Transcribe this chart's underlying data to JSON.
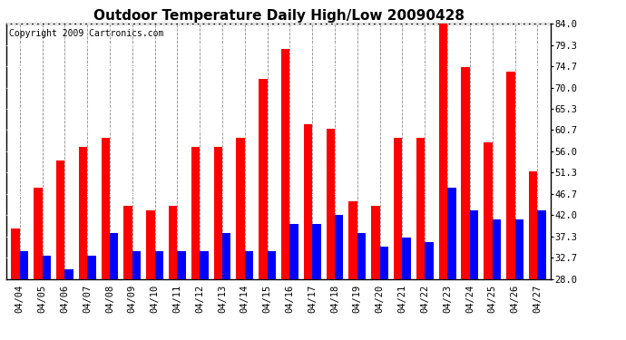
{
  "title": "Outdoor Temperature Daily High/Low 20090428",
  "copyright": "Copyright 2009 Cartronics.com",
  "dates": [
    "04/04",
    "04/05",
    "04/06",
    "04/07",
    "04/08",
    "04/09",
    "04/10",
    "04/11",
    "04/12",
    "04/13",
    "04/14",
    "04/15",
    "04/16",
    "04/17",
    "04/18",
    "04/19",
    "04/20",
    "04/21",
    "04/22",
    "04/23",
    "04/24",
    "04/25",
    "04/26",
    "04/27"
  ],
  "highs": [
    39.0,
    48.0,
    54.0,
    57.0,
    59.0,
    44.0,
    43.0,
    44.0,
    57.0,
    57.0,
    59.0,
    72.0,
    78.5,
    62.0,
    61.0,
    45.0,
    44.0,
    59.0,
    59.0,
    84.0,
    74.5,
    58.0,
    73.5,
    51.5
  ],
  "lows": [
    34.0,
    33.0,
    30.0,
    33.0,
    38.0,
    34.0,
    34.0,
    34.0,
    34.0,
    38.0,
    34.0,
    34.0,
    40.0,
    40.0,
    42.0,
    38.0,
    35.0,
    37.0,
    36.0,
    48.0,
    43.0,
    41.0,
    41.0,
    43.0
  ],
  "yticks": [
    28.0,
    32.7,
    37.3,
    42.0,
    46.7,
    51.3,
    56.0,
    60.7,
    65.3,
    70.0,
    74.7,
    79.3,
    84.0
  ],
  "ylim": [
    28.0,
    84.0
  ],
  "ybase": 28.0,
  "high_color": "#ff0000",
  "low_color": "#0000ff",
  "bg_color": "#ffffff",
  "grid_color": "#888888",
  "title_fontsize": 11,
  "copyright_fontsize": 7,
  "tick_fontsize": 7.5
}
